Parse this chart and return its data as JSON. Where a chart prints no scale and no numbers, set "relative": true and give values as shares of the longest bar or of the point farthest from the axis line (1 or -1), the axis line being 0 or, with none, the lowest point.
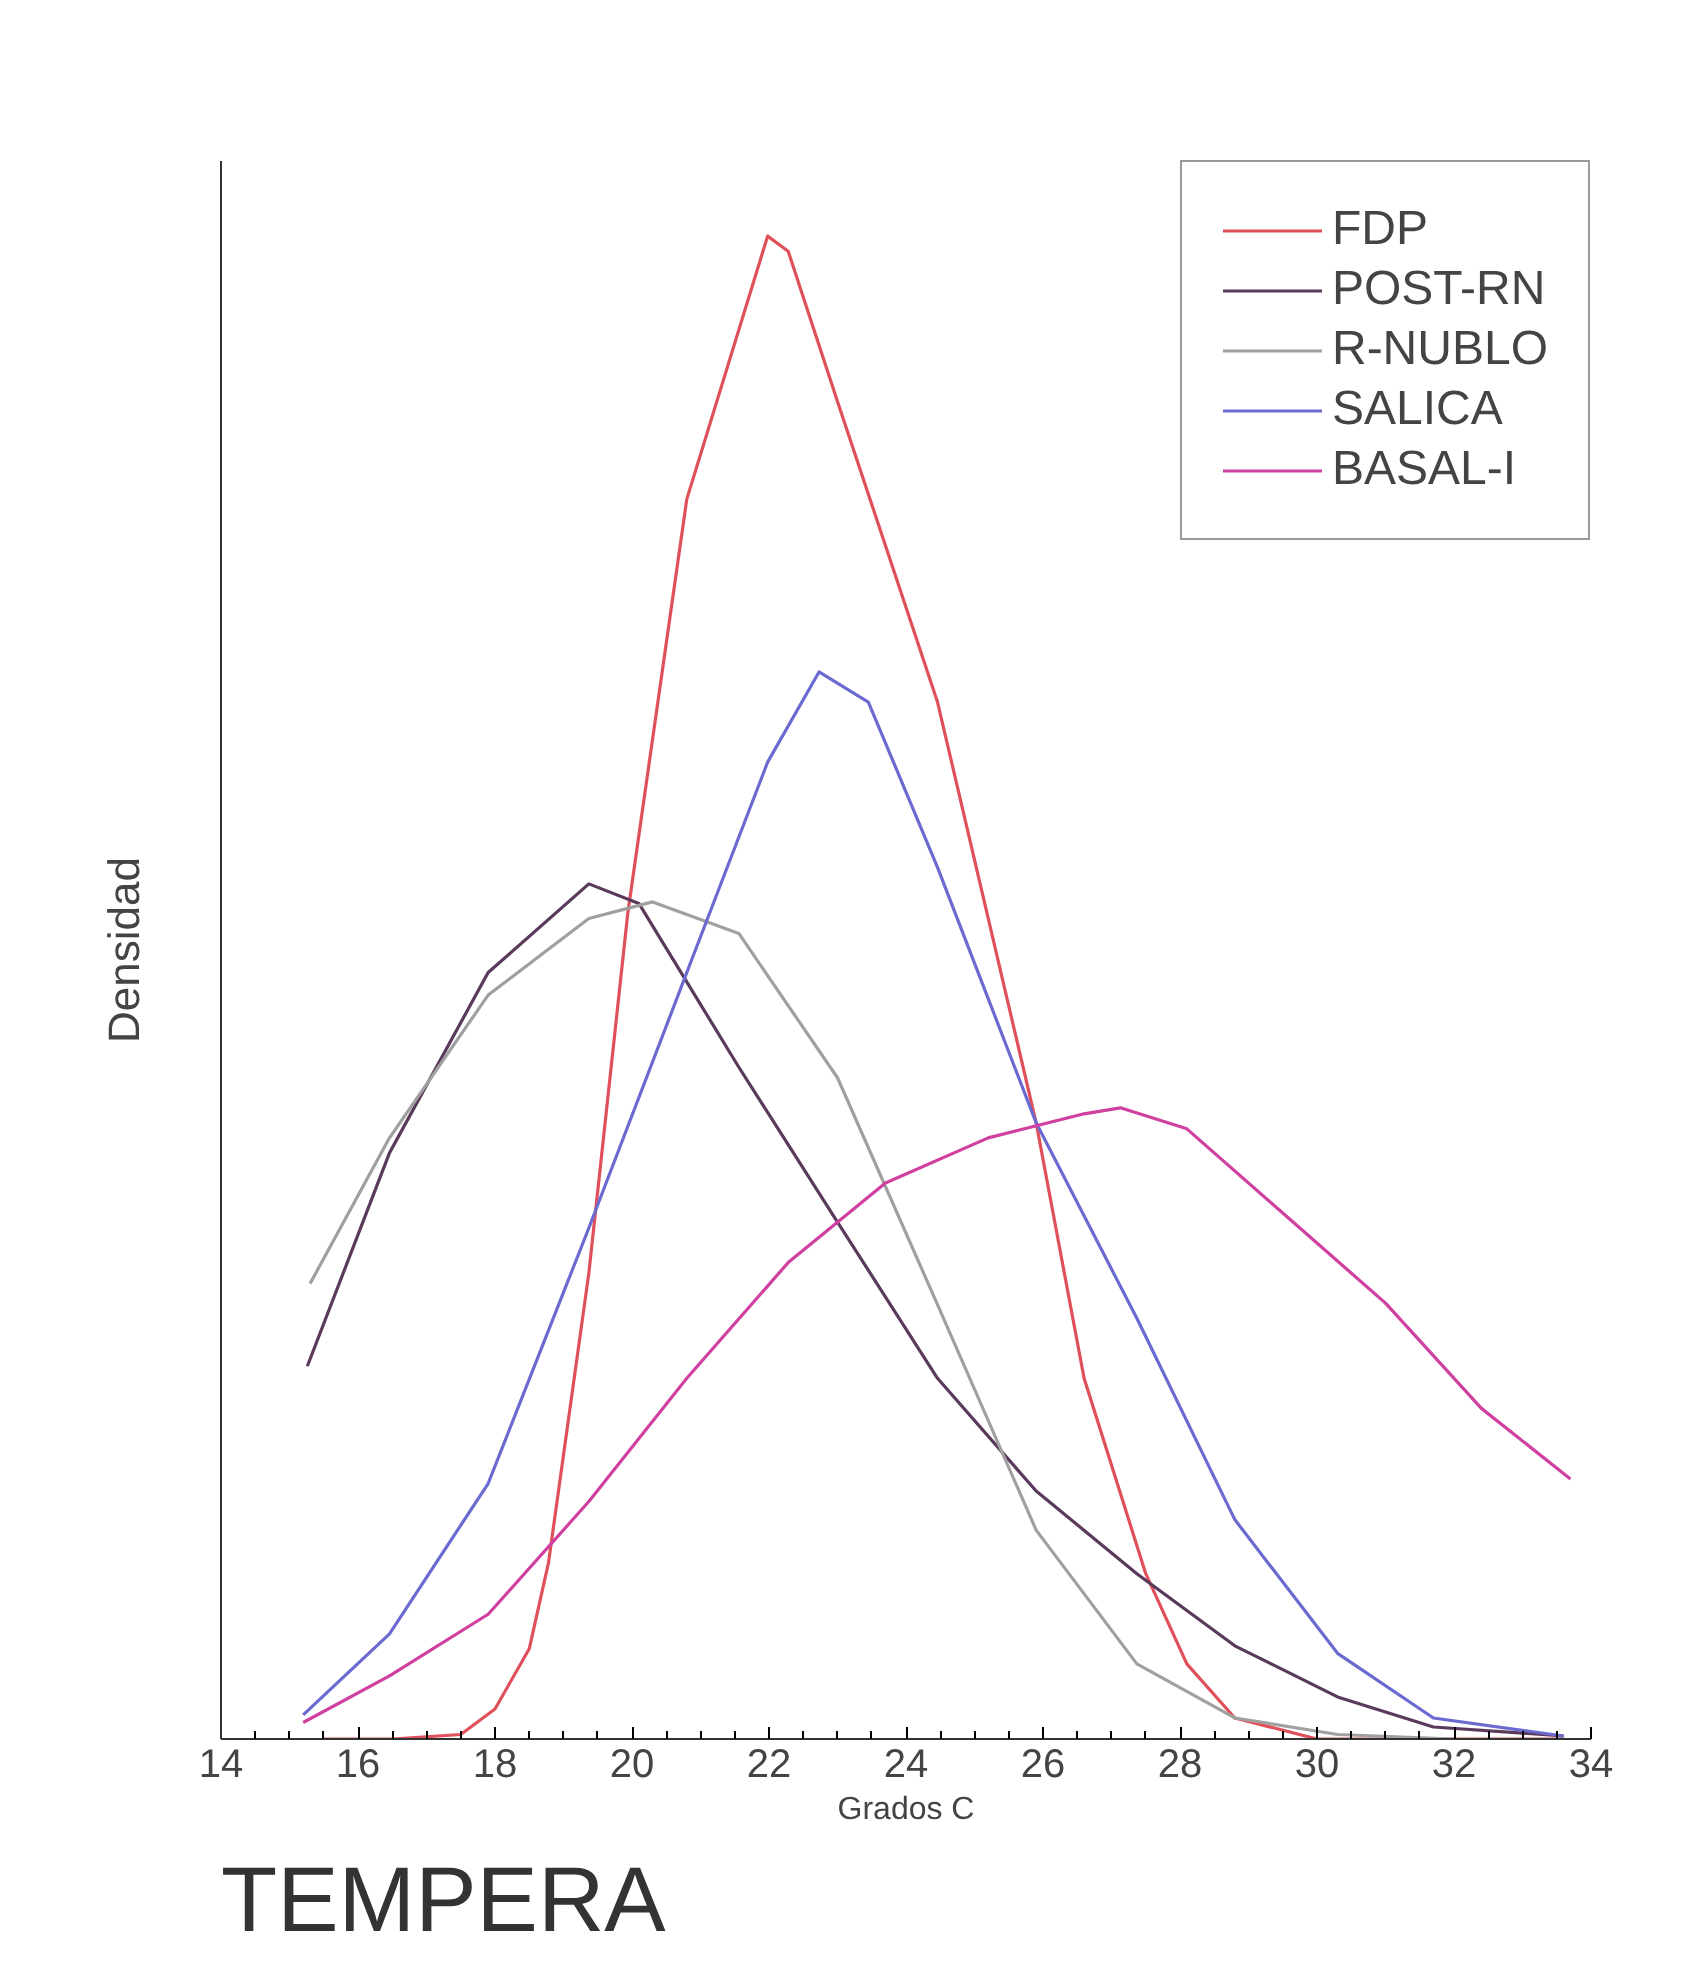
{
  "chart_data": {
    "type": "line",
    "title": "TEMPERA",
    "xlabel": "Grados C",
    "ylabel": "Densidad",
    "relative": true,
    "xlim": [
      14,
      34
    ],
    "xticks": [
      14,
      16,
      18,
      20,
      22,
      24,
      26,
      28,
      30,
      32,
      34
    ],
    "grid": false,
    "legend": "top right",
    "marker": "none",
    "line_style": "solid",
    "series": [
      {
        "name": "FDP",
        "color": "#e0505a",
        "x": [
          15.5,
          16.5,
          17.5,
          18.0,
          18.5,
          18.78,
          19.37,
          19.94,
          20.8,
          21.98,
          22.28,
          23.0,
          24.46,
          25.9,
          26.6,
          27.5,
          28.1,
          28.8,
          30.0,
          33.6
        ],
        "values": [
          0,
          0,
          0.003,
          0.02,
          0.06,
          0.117,
          0.31,
          0.55,
          0.825,
          1.0,
          0.99,
          0.89,
          0.69,
          0.41,
          0.24,
          0.11,
          0.05,
          0.014,
          0,
          0
        ]
      },
      {
        "name": "POST-RN",
        "color": "#5a3a5a",
        "x": [
          15.26,
          16.46,
          17.9,
          19.37,
          20.1,
          21.56,
          23.0,
          24.46,
          25.9,
          27.37,
          28.8,
          30.3,
          31.7,
          33.6
        ],
        "values": [
          0.248,
          0.39,
          0.51,
          0.569,
          0.556,
          0.447,
          0.344,
          0.24,
          0.165,
          0.11,
          0.062,
          0.028,
          0.008,
          0.002
        ]
      },
      {
        "name": "R-NUBLO",
        "color": "#a0a0a0",
        "x": [
          15.3,
          16.46,
          17.9,
          19.37,
          20.3,
          21.56,
          23.0,
          24.46,
          25.9,
          27.37,
          28.8,
          30.3,
          32.0
        ],
        "values": [
          0.303,
          0.4,
          0.495,
          0.546,
          0.557,
          0.536,
          0.44,
          0.289,
          0.139,
          0.05,
          0.014,
          0.003,
          0
        ]
      },
      {
        "name": "SALICA",
        "color": "#6a6ad0",
        "x": [
          15.2,
          16.46,
          17.9,
          19.37,
          20.8,
          21.98,
          22.73,
          23.45,
          24.46,
          25.9,
          27.37,
          28.8,
          30.3,
          31.7,
          33.6
        ],
        "values": [
          0.016,
          0.07,
          0.17,
          0.34,
          0.51,
          0.65,
          0.71,
          0.69,
          0.58,
          0.41,
          0.28,
          0.146,
          0.057,
          0.014,
          0.002
        ]
      },
      {
        "name": "BASAL-I",
        "color": "#d040a0",
        "x": [
          15.2,
          16.46,
          17.9,
          19.37,
          20.8,
          22.28,
          23.7,
          25.2,
          26.6,
          27.13,
          28.1,
          29.5,
          31.0,
          32.4,
          33.7
        ],
        "values": [
          0.011,
          0.042,
          0.083,
          0.158,
          0.24,
          0.317,
          0.37,
          0.4,
          0.416,
          0.42,
          0.406,
          0.35,
          0.29,
          0.22,
          0.173
        ]
      }
    ]
  }
}
